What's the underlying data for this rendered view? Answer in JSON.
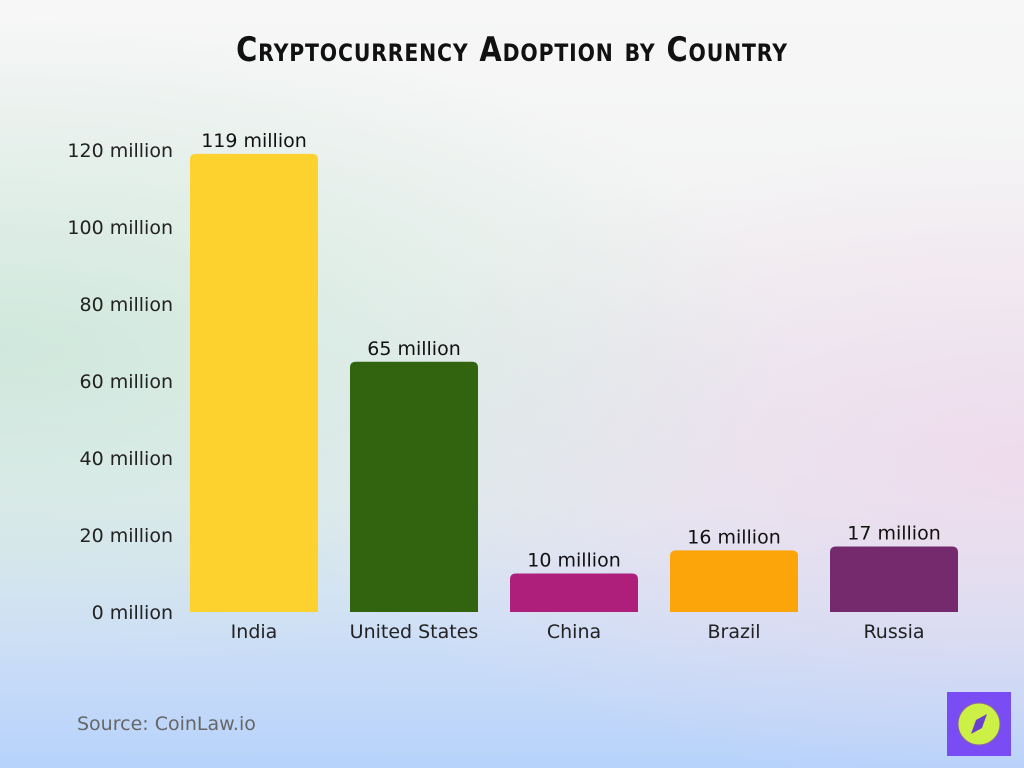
{
  "chart_data": {
    "type": "bar",
    "title": "Cryptocurrency Adoption by Country",
    "categories": [
      "India",
      "United States",
      "China",
      "Brazil",
      "Russia"
    ],
    "values": [
      119,
      65,
      10,
      16,
      17
    ],
    "data_labels": [
      "119 million",
      "65 million",
      "10 million",
      "16 million",
      "17 million"
    ],
    "colors": [
      "#fdd22e",
      "#326410",
      "#ae1f7c",
      "#fba50a",
      "#742a6c"
    ],
    "unit": "million",
    "yticks": [
      0,
      20,
      40,
      60,
      80,
      100,
      120
    ],
    "ytick_labels": [
      "0 million",
      "20 million",
      "40 million",
      "60 million",
      "80 million",
      "100 million",
      "120 million"
    ],
    "ylim": [
      0,
      120
    ],
    "grid": false,
    "xlabel": "",
    "ylabel": ""
  },
  "source": "Source: CoinLaw.io",
  "logo": {
    "icon": "compass-icon",
    "bg": "#7a4cf3",
    "circle": "#ccf045"
  }
}
